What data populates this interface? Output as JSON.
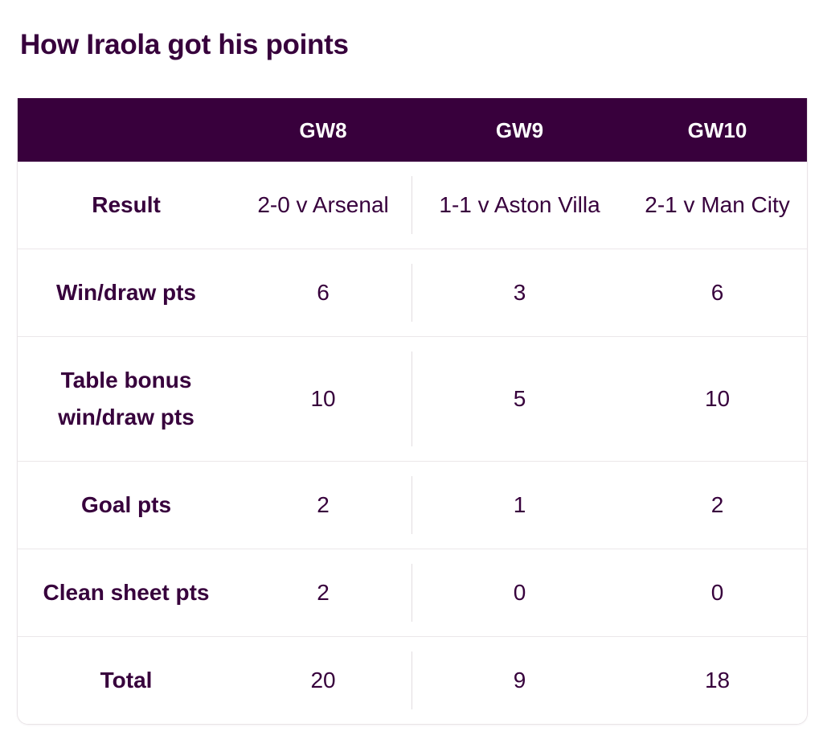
{
  "page_title": "How Iraola got his points",
  "colors": {
    "header_bg": "#38003c",
    "header_text": "#ffffff",
    "body_text": "#37003c",
    "divider": "#ebe7e9"
  },
  "table": {
    "columns": [
      "",
      "GW8",
      "GW9",
      "GW10"
    ],
    "rows": [
      {
        "label": "Result",
        "values": [
          "2-0 v Arsenal",
          "1-1 v Aston Villa",
          "2-1 v Man City"
        ]
      },
      {
        "label": "Win/draw pts",
        "values": [
          "6",
          "3",
          "6"
        ]
      },
      {
        "label": "Table bonus win/draw pts",
        "values": [
          "10",
          "5",
          "10"
        ]
      },
      {
        "label": "Goal pts",
        "values": [
          "2",
          "1",
          "2"
        ]
      },
      {
        "label": "Clean sheet pts",
        "values": [
          "2",
          "0",
          "0"
        ]
      },
      {
        "label": "Total",
        "values": [
          "20",
          "9",
          "18"
        ]
      }
    ]
  }
}
